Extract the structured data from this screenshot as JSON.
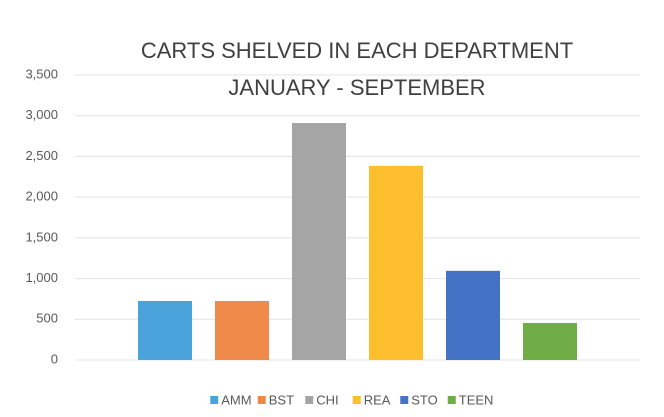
{
  "chart_data": {
    "type": "bar",
    "title": "CARTS SHELVED IN EACH DEPARTMENT",
    "subtitle": "JANUARY - SEPTEMBER",
    "categories": [
      null
    ],
    "series": [
      {
        "name": "AMM",
        "color": "#4ba3dc",
        "values": [
          725
        ]
      },
      {
        "name": "BST",
        "color": "#f08a4b",
        "values": [
          725
        ]
      },
      {
        "name": "CHI",
        "color": "#a5a5a5",
        "values": [
          2910
        ]
      },
      {
        "name": "REA",
        "color": "#fdbf2d",
        "values": [
          2385
        ]
      },
      {
        "name": "STO",
        "color": "#4472c4",
        "values": [
          1095
        ]
      },
      {
        "name": "TEEN",
        "color": "#70ad47",
        "values": [
          455
        ]
      }
    ],
    "ylim": [
      0,
      3500
    ],
    "yticks": [
      0,
      500,
      {
        "value": 1000,
        "label": "1,000"
      },
      {
        "value": 1500,
        "label": "1,500"
      },
      {
        "value": 2000,
        "label": "2,000"
      },
      {
        "value": 2500,
        "label": "2,500"
      },
      {
        "value": 3000,
        "label": "3,000"
      },
      {
        "value": 3500,
        "label": "3,500"
      }
    ],
    "grid": true,
    "legend": "bottom"
  }
}
